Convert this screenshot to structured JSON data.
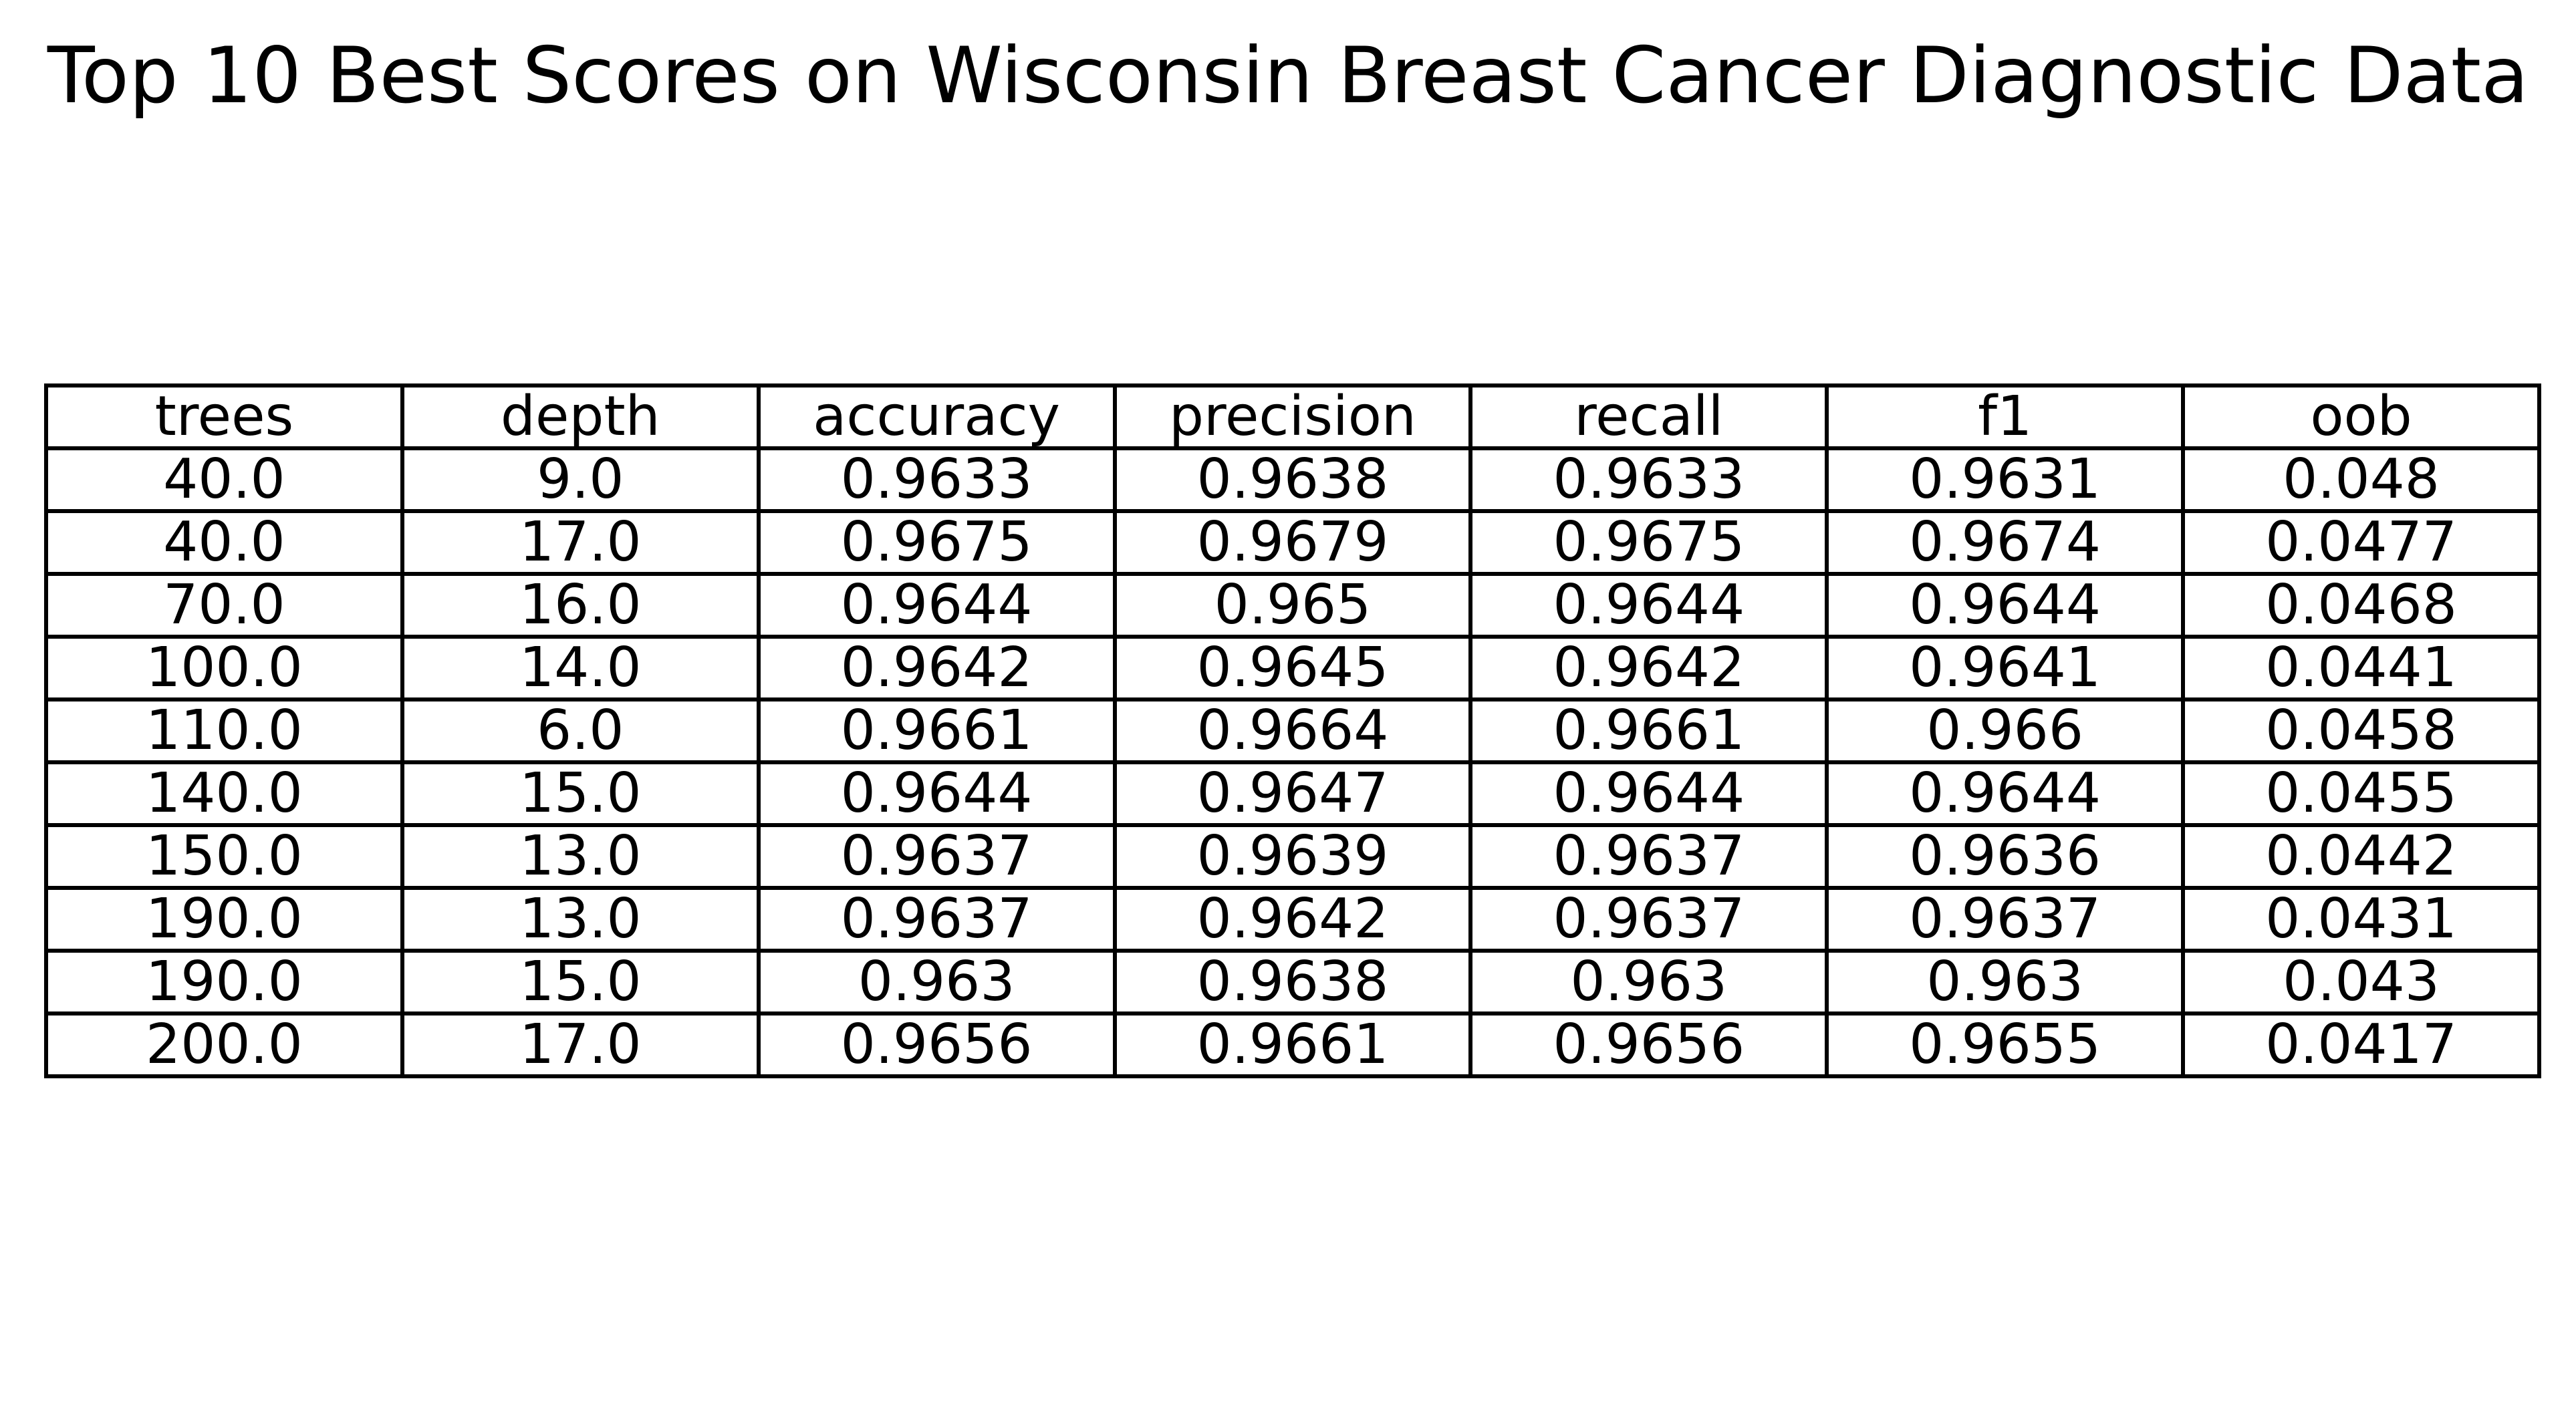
{
  "chart_data": {
    "type": "table",
    "title": "Top 10 Best Scores on Wisconsin Breast Cancer Diagnostic Data",
    "columns": [
      "trees",
      "depth",
      "accuracy",
      "precision",
      "recall",
      "f1",
      "oob"
    ],
    "rows": [
      [
        "40.0",
        "9.0",
        "0.9633",
        "0.9638",
        "0.9633",
        "0.9631",
        "0.048"
      ],
      [
        "40.0",
        "17.0",
        "0.9675",
        "0.9679",
        "0.9675",
        "0.9674",
        "0.0477"
      ],
      [
        "70.0",
        "16.0",
        "0.9644",
        "0.965",
        "0.9644",
        "0.9644",
        "0.0468"
      ],
      [
        "100.0",
        "14.0",
        "0.9642",
        "0.9645",
        "0.9642",
        "0.9641",
        "0.0441"
      ],
      [
        "110.0",
        "6.0",
        "0.9661",
        "0.9664",
        "0.9661",
        "0.966",
        "0.0458"
      ],
      [
        "140.0",
        "15.0",
        "0.9644",
        "0.9647",
        "0.9644",
        "0.9644",
        "0.0455"
      ],
      [
        "150.0",
        "13.0",
        "0.9637",
        "0.9639",
        "0.9637",
        "0.9636",
        "0.0442"
      ],
      [
        "190.0",
        "13.0",
        "0.9637",
        "0.9642",
        "0.9637",
        "0.9637",
        "0.0431"
      ],
      [
        "190.0",
        "15.0",
        "0.963",
        "0.9638",
        "0.963",
        "0.963",
        "0.043"
      ],
      [
        "200.0",
        "17.0",
        "0.9656",
        "0.9661",
        "0.9656",
        "0.9655",
        "0.0417"
      ]
    ]
  }
}
